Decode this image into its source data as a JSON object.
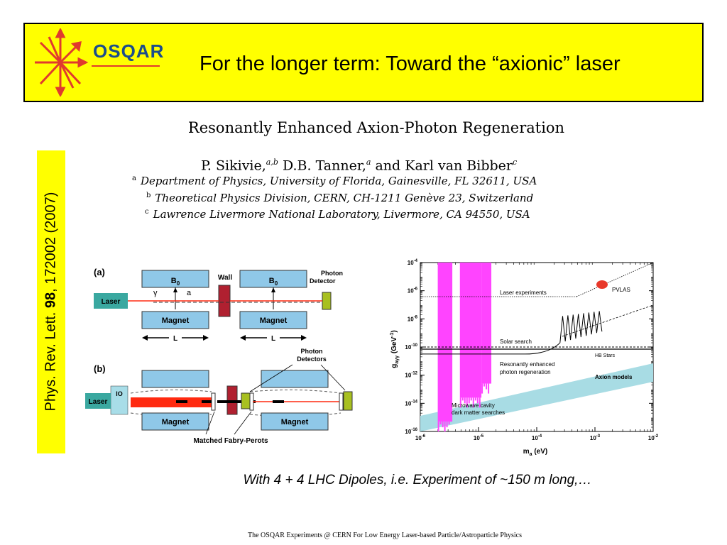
{
  "header": {
    "logo_text": "OSQAR",
    "title": "For the longer term: Toward the “axionic” laser",
    "colors": {
      "background": "#ffff00",
      "logo_text": "#1b4d8c",
      "logo_star": "#e03a2e"
    }
  },
  "side_citation": {
    "journal": "Phys. Rev. Lett. ",
    "volume": "98",
    "rest": ", 172002 (2007)"
  },
  "paper": {
    "title": "Resonantly Enhanced Axion-Photon Regeneration",
    "authors": {
      "a1": "P. Sikivie,",
      "a1_sup": "a,b",
      "a2": " D.B. Tanner,",
      "a2_sup": "a",
      "a3": " and Karl van Bibber",
      "a3_sup": "c"
    },
    "affiliations": [
      {
        "sup": "a",
        "text": "Department of Physics, University of Florida, Gainesville, FL 32611, USA"
      },
      {
        "sup": "b",
        "text": "Theoretical Physics Division, CERN, CH-1211 Genève 23, Switzerland"
      },
      {
        "sup": "c",
        "text": "Lawrence Livermore National Laboratory, Livermore, CA 94550, USA"
      }
    ]
  },
  "diagram": {
    "panel_a_label": "(a)",
    "panel_b_label": "(b)",
    "laser": "Laser",
    "b0": "B",
    "b0_sub": "0",
    "magnet": "Magnet",
    "wall": "Wall",
    "photon_detector_l1": "Photon",
    "photon_detector_l2": "Detector",
    "photon_detectors_l1": "Photon",
    "photon_detectors_l2": "Detectors",
    "gamma": "γ",
    "axion": "a",
    "length": "L",
    "io": "IO",
    "matched": "Matched Fabry-Perots",
    "colors": {
      "box": "#8fc8e8",
      "wall": "#b02030",
      "detector": "#a8c020",
      "beam": "#ff2a10",
      "io": "#a8dde8"
    }
  },
  "chart_data": {
    "type": "exclusion_plot",
    "xlabel": "m",
    "xlabel_sub": "a",
    "xlabel_unit": " (eV)",
    "ylabel": "g",
    "ylabel_sub": "aγγ",
    "ylabel_unit": " (GeV",
    "x_log_range": [
      -6,
      -2
    ],
    "y_log_range": [
      -16,
      -4
    ],
    "x_tick_labels": [
      {
        "base": "10",
        "exp": "-6"
      },
      {
        "base": "10",
        "exp": "-5"
      },
      {
        "base": "10",
        "exp": "-4"
      },
      {
        "base": "10",
        "exp": "-3"
      },
      {
        "base": "10",
        "exp": "-2"
      }
    ],
    "y_tick_labels": [
      {
        "base": "10",
        "exp": "-4"
      },
      {
        "base": "10",
        "exp": "-6"
      },
      {
        "base": "10",
        "exp": "-8"
      },
      {
        "base": "10",
        "exp": "-10"
      },
      {
        "base": "10",
        "exp": "-12"
      },
      {
        "base": "10",
        "exp": "-14"
      },
      {
        "base": "10",
        "exp": "-16"
      }
    ],
    "region_labels": {
      "laser": "Laser experiments",
      "pvlas": "PVLAS",
      "solar": "Solar search",
      "hb": "HB Stars",
      "res_l1": "Resonantly enhanced",
      "res_l2": "photon regeneration",
      "axion": "Axion models",
      "cavity_l1": "Microwave cavity",
      "cavity_l2": "dark matter searches"
    },
    "colors": {
      "cavity": "#ff44ff",
      "axion_band": "#a8dce4",
      "pvlas": "#e8382a"
    }
  },
  "caption": "With 4 + 4 LHC Dipoles, i.e. Experiment of ~150 m long,…",
  "footer": "The OSQAR Experiments @ CERN  For Low Energy Laser-based Particle/Astroparticle Physics"
}
